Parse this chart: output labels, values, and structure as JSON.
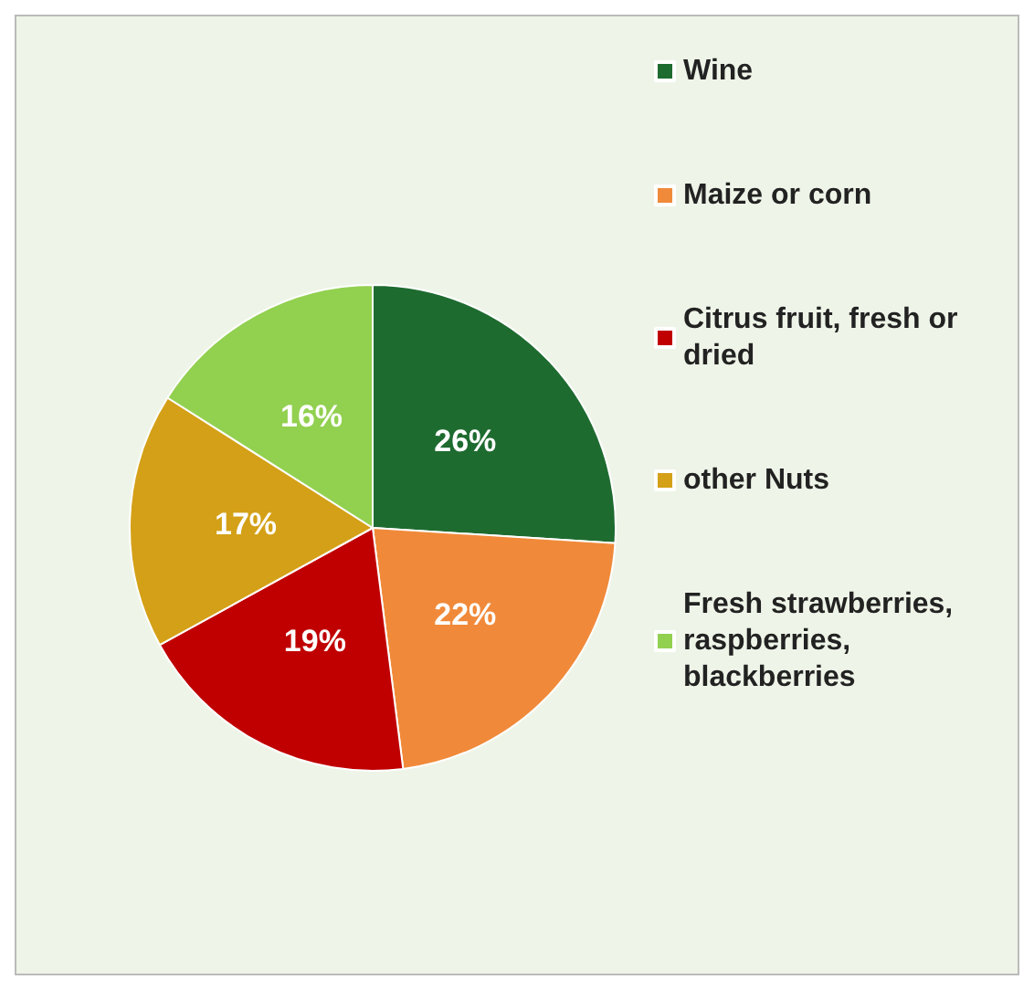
{
  "chart_data": {
    "type": "pie",
    "categories": [
      "Wine",
      "Maize or corn",
      "Citrus fruit, fresh or dried",
      "other Nuts",
      "Fresh strawberries, raspberries, blackberries"
    ],
    "values": [
      26,
      22,
      19,
      17,
      16
    ],
    "colors": [
      "#1e6b30",
      "#f08a3a",
      "#c00000",
      "#d4a017",
      "#92d050"
    ],
    "value_labels": [
      "26%",
      "22%",
      "19%",
      "17%",
      "16%"
    ],
    "legend": "right"
  }
}
